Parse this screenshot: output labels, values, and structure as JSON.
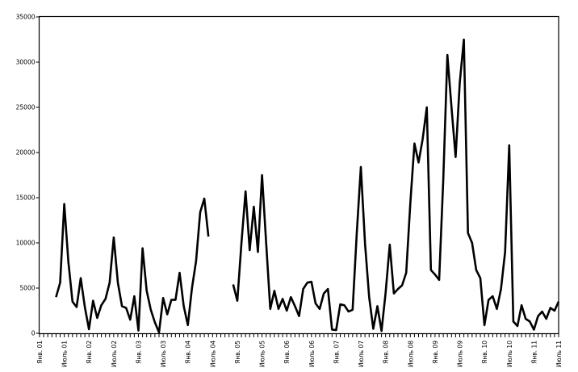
{
  "chart_data": {
    "type": "line",
    "title": "",
    "xlabel": "",
    "ylabel": "",
    "ylim": [
      0,
      35000
    ],
    "y_tick_step": 5000,
    "y_tick_labels": [
      "0",
      "5000",
      "10000",
      "15000",
      "20000",
      "25000",
      "30000",
      "35000"
    ],
    "x_tick_labels": [
      "Янв. 01",
      "Июль 01",
      "Янв. 02",
      "Июль 02",
      "Янв. 03",
      "Июль 03",
      "Янв. 04",
      "Июль 04",
      "Янв. 05",
      "Июль 05",
      "Янв. 06",
      "Июль 06",
      "Янв. 07",
      "Июль 07",
      "Янв. 08",
      "Июль 08",
      "Янв. 09",
      "Июль 09",
      "Янв. 10",
      "Июль 10",
      "Янв. 11",
      "Июль 11"
    ],
    "x_minor_ticks": "monthly",
    "x_labels_every_n_ticks": 6,
    "x_label_rotation_degrees": 90,
    "grid": "off",
    "legend": "none",
    "plot_frame": "full-box",
    "line_color": "#000000",
    "axis_color": "#000000",
    "background_color": "#ffffff",
    "data_gaps_are_null": true,
    "series": [
      {
        "name": "",
        "values": [
          null,
          null,
          null,
          null,
          4000,
          5600,
          14300,
          7900,
          3500,
          2900,
          6100,
          2900,
          450,
          3600,
          1700,
          3100,
          3800,
          5600,
          10600,
          5600,
          3000,
          2800,
          1500,
          4100,
          300,
          9400,
          4700,
          2600,
          1200,
          100,
          3900,
          2100,
          3700,
          3700,
          6700,
          3000,
          900,
          5000,
          8000,
          13400,
          14900,
          10700,
          null,
          null,
          null,
          null,
          null,
          5400,
          3600,
          10000,
          15700,
          9200,
          14000,
          9000,
          17500,
          10000,
          2700,
          4700,
          2700,
          3800,
          2500,
          4000,
          3000,
          1900,
          4900,
          5600,
          5700,
          3300,
          2700,
          4400,
          4900,
          400,
          350,
          3200,
          3100,
          2400,
          2600,
          11000,
          18400,
          9900,
          4000,
          500,
          3000,
          250,
          4500,
          9800,
          4400,
          4900,
          5300,
          6700,
          14400,
          21000,
          18900,
          21500,
          25000,
          7000,
          6500,
          5900,
          17000,
          30800,
          25000,
          19500,
          27700,
          32500,
          11100,
          10000,
          7000,
          6100,
          900,
          3700,
          4100,
          2700,
          4900,
          9000,
          20800,
          1300,
          800,
          3100,
          1600,
          1300,
          400,
          1900,
          2400,
          1600,
          2800,
          2500,
          3500
        ]
      }
    ]
  }
}
